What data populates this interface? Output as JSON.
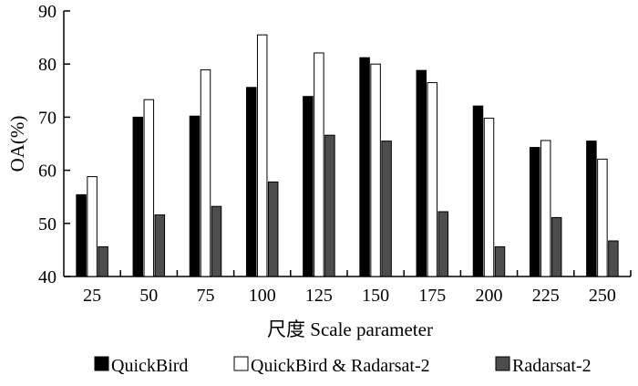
{
  "chart_data": {
    "type": "bar",
    "xlabel": "尺度  Scale parameter",
    "ylabel": "OA(%)",
    "ylim": [
      40,
      90
    ],
    "yticks": [
      40,
      50,
      60,
      70,
      80,
      90
    ],
    "categories": [
      "25",
      "50",
      "75",
      "100",
      "125",
      "150",
      "175",
      "200",
      "225",
      "250"
    ],
    "series": [
      {
        "name": "QuickBird",
        "color": "#000000",
        "values": [
          55.4,
          70.0,
          70.2,
          75.6,
          73.9,
          81.2,
          78.8,
          72.1,
          64.3,
          65.5
        ]
      },
      {
        "name": "QuickBird & Radarsat-2",
        "color": "#ffffff",
        "values": [
          58.8,
          73.3,
          78.9,
          85.5,
          82.1,
          80.0,
          76.5,
          69.8,
          65.6,
          62.1
        ]
      },
      {
        "name": "Radarsat-2",
        "color": "#4d4d4d",
        "values": [
          45.6,
          51.6,
          53.2,
          57.8,
          66.6,
          65.5,
          52.2,
          45.6,
          51.1,
          46.7
        ]
      }
    ],
    "legend_position": "bottom",
    "grid": false
  }
}
